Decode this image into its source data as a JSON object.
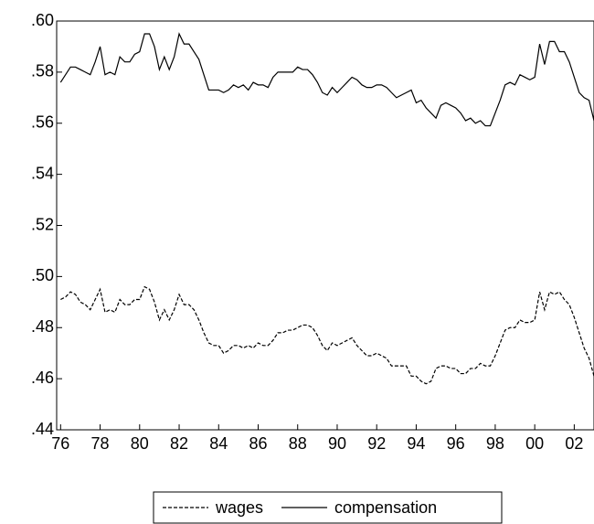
{
  "chart_data": {
    "type": "line",
    "x": [
      1976,
      1976.25,
      1976.5,
      1976.75,
      1977,
      1977.25,
      1977.5,
      1977.75,
      1978,
      1978.25,
      1978.5,
      1978.75,
      1979,
      1979.25,
      1979.5,
      1979.75,
      1980,
      1980.25,
      1980.5,
      1980.75,
      1981,
      1981.25,
      1981.5,
      1981.75,
      1982,
      1982.25,
      1982.5,
      1982.75,
      1983,
      1983.25,
      1983.5,
      1983.75,
      1984,
      1984.25,
      1984.5,
      1984.75,
      1985,
      1985.25,
      1985.5,
      1985.75,
      1986,
      1986.25,
      1986.5,
      1986.75,
      1987,
      1987.25,
      1987.5,
      1987.75,
      1988,
      1988.25,
      1988.5,
      1988.75,
      1989,
      1989.25,
      1989.5,
      1989.75,
      1990,
      1990.25,
      1990.5,
      1990.75,
      1991,
      1991.25,
      1991.5,
      1991.75,
      1992,
      1992.25,
      1992.5,
      1992.75,
      1993,
      1993.25,
      1993.5,
      1993.75,
      1994,
      1994.25,
      1994.5,
      1994.75,
      1995,
      1995.25,
      1995.5,
      1995.75,
      1996,
      1996.25,
      1996.5,
      1996.75,
      1997,
      1997.25,
      1997.5,
      1997.75,
      1998,
      1998.25,
      1998.5,
      1998.75,
      1999,
      1999.25,
      1999.5,
      1999.75,
      2000,
      2000.25,
      2000.5,
      2000.75,
      2001,
      2001.25,
      2001.5,
      2001.75,
      2002,
      2002.25,
      2002.5,
      2002.75,
      2003
    ],
    "series": [
      {
        "name": "wages",
        "color": "#000000",
        "dash": true,
        "values": [
          0.491,
          0.492,
          0.494,
          0.493,
          0.49,
          0.489,
          0.487,
          0.491,
          0.495,
          0.486,
          0.487,
          0.486,
          0.491,
          0.489,
          0.489,
          0.491,
          0.491,
          0.496,
          0.495,
          0.49,
          0.483,
          0.487,
          0.483,
          0.487,
          0.493,
          0.489,
          0.489,
          0.487,
          0.483,
          0.478,
          0.474,
          0.473,
          0.473,
          0.47,
          0.471,
          0.473,
          0.473,
          0.472,
          0.473,
          0.472,
          0.474,
          0.473,
          0.473,
          0.475,
          0.478,
          0.478,
          0.479,
          0.479,
          0.48,
          0.481,
          0.481,
          0.48,
          0.477,
          0.473,
          0.471,
          0.474,
          0.473,
          0.474,
          0.475,
          0.476,
          0.473,
          0.471,
          0.469,
          0.469,
          0.47,
          0.469,
          0.468,
          0.465,
          0.465,
          0.465,
          0.465,
          0.461,
          0.461,
          0.459,
          0.458,
          0.459,
          0.464,
          0.465,
          0.465,
          0.464,
          0.464,
          0.462,
          0.462,
          0.464,
          0.464,
          0.466,
          0.465,
          0.465,
          0.469,
          0.474,
          0.479,
          0.48,
          0.48,
          0.483,
          0.482,
          0.482,
          0.483,
          0.494,
          0.487,
          0.494,
          0.493,
          0.494,
          0.491,
          0.489,
          0.484,
          0.478,
          0.472,
          0.468,
          0.461
        ]
      },
      {
        "name": "compensation",
        "color": "#000000",
        "dash": false,
        "values": [
          0.576,
          0.579,
          0.582,
          0.582,
          0.581,
          0.58,
          0.579,
          0.584,
          0.59,
          0.579,
          0.58,
          0.579,
          0.586,
          0.584,
          0.584,
          0.587,
          0.588,
          0.595,
          0.595,
          0.59,
          0.581,
          0.586,
          0.581,
          0.586,
          0.595,
          0.591,
          0.591,
          0.588,
          0.585,
          0.579,
          0.573,
          0.573,
          0.573,
          0.572,
          0.573,
          0.575,
          0.574,
          0.575,
          0.573,
          0.576,
          0.575,
          0.575,
          0.574,
          0.578,
          0.58,
          0.58,
          0.58,
          0.58,
          0.582,
          0.581,
          0.581,
          0.579,
          0.576,
          0.572,
          0.571,
          0.574,
          0.572,
          0.574,
          0.576,
          0.578,
          0.577,
          0.575,
          0.574,
          0.574,
          0.575,
          0.575,
          0.574,
          0.572,
          0.57,
          0.571,
          0.572,
          0.573,
          0.568,
          0.569,
          0.566,
          0.564,
          0.562,
          0.567,
          0.568,
          0.567,
          0.566,
          0.564,
          0.561,
          0.562,
          0.56,
          0.561,
          0.559,
          0.559,
          0.564,
          0.569,
          0.575,
          0.576,
          0.575,
          0.579,
          0.578,
          0.577,
          0.578,
          0.591,
          0.583,
          0.592,
          0.592,
          0.588,
          0.588,
          0.584,
          0.578,
          0.572,
          0.57,
          0.569,
          0.561
        ]
      }
    ],
    "xlim": [
      1975.8,
      2003
    ],
    "xticks": [
      {
        "value": 1976,
        "label": "76"
      },
      {
        "value": 1978,
        "label": "78"
      },
      {
        "value": 1980,
        "label": "80"
      },
      {
        "value": 1982,
        "label": "82"
      },
      {
        "value": 1984,
        "label": "84"
      },
      {
        "value": 1986,
        "label": "86"
      },
      {
        "value": 1988,
        "label": "88"
      },
      {
        "value": 1990,
        "label": "90"
      },
      {
        "value": 1992,
        "label": "92"
      },
      {
        "value": 1994,
        "label": "94"
      },
      {
        "value": 1996,
        "label": "96"
      },
      {
        "value": 1998,
        "label": "98"
      },
      {
        "value": 2000,
        "label": "00"
      },
      {
        "value": 2002,
        "label": "02"
      }
    ],
    "ylim": [
      0.44,
      0.6
    ],
    "yticks": [
      {
        "value": 0.44,
        "label": ".44"
      },
      {
        "value": 0.46,
        "label": ".46"
      },
      {
        "value": 0.48,
        "label": ".48"
      },
      {
        "value": 0.5,
        "label": ".50"
      },
      {
        "value": 0.52,
        "label": ".52"
      },
      {
        "value": 0.54,
        "label": ".54"
      },
      {
        "value": 0.56,
        "label": ".56"
      },
      {
        "value": 0.58,
        "label": ".58"
      },
      {
        "value": 0.6,
        "label": ".60"
      }
    ],
    "grid": false,
    "legend": "bottom"
  }
}
